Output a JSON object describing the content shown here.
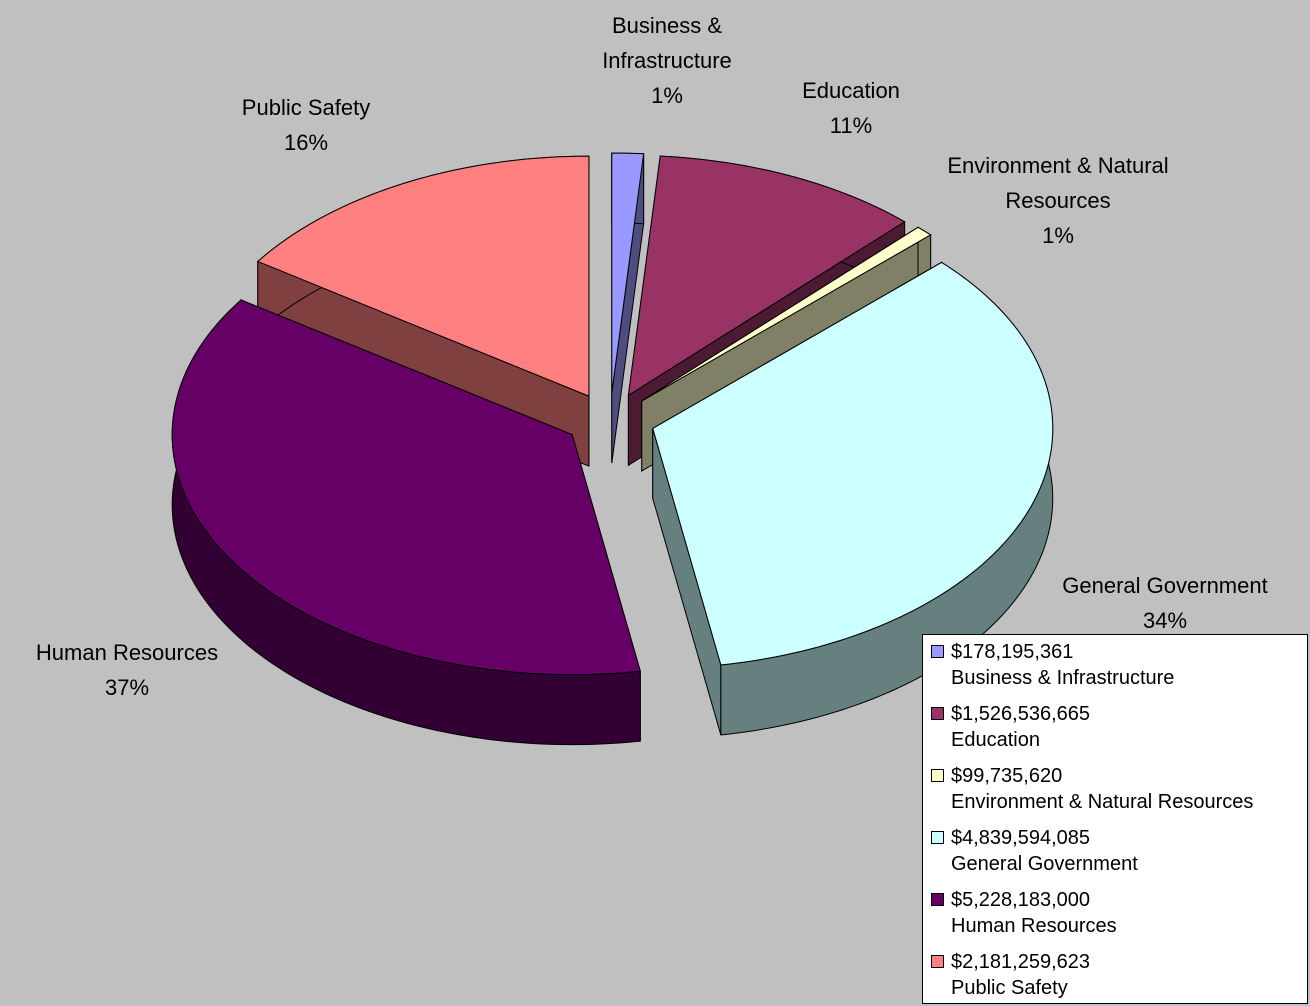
{
  "chart_data": {
    "type": "pie",
    "categories": [
      "Business & Infrastructure",
      "Education",
      "Environment & Natural Resources",
      "General Government",
      "Human Resources",
      "Public Safety"
    ],
    "values": [
      178195361,
      1526536665,
      99735620,
      4839594085,
      5228183000,
      2181259623
    ],
    "value_labels": [
      "$178,195,361",
      "$1,526,536,665",
      "$99,735,620",
      "$4,839,594,085",
      "$5,228,183,000",
      "$2,181,259,623"
    ],
    "percents": [
      1,
      11,
      1,
      34,
      37,
      16
    ],
    "percent_labels": [
      "1%",
      "11%",
      "1%",
      "34%",
      "37%",
      "16%"
    ],
    "colors": [
      "#9999ff",
      "#993366",
      "#ffffcc",
      "#ccffff",
      "#660066",
      "#ff8080"
    ],
    "legend": "bottom-right"
  }
}
